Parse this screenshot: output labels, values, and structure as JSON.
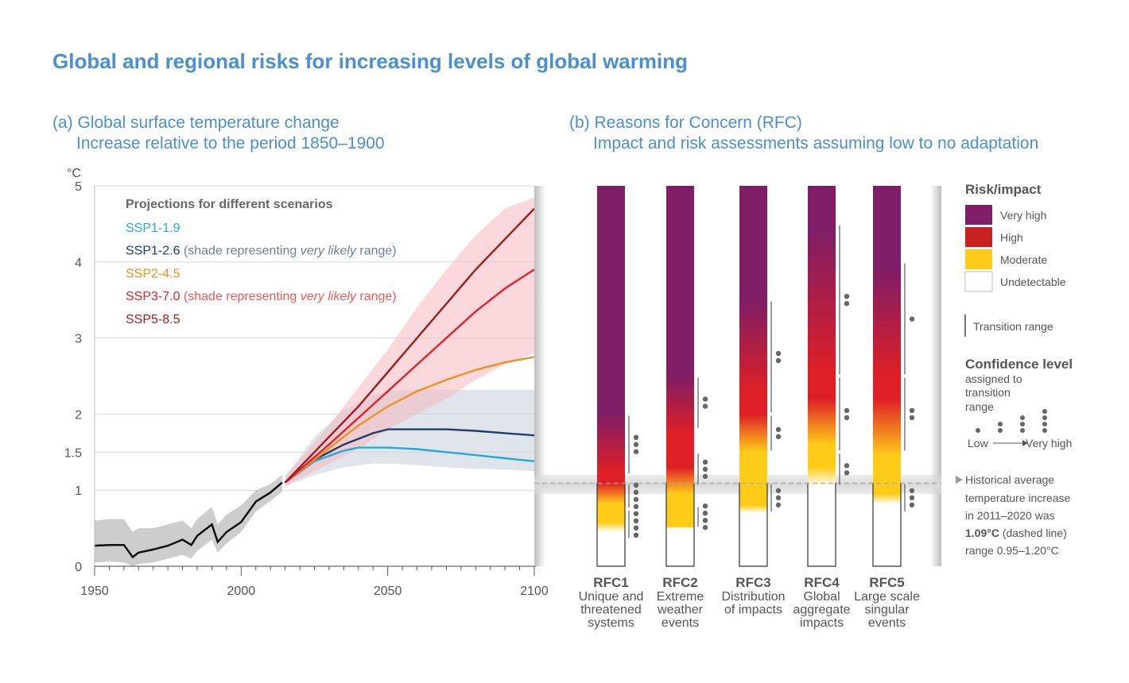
{
  "title": "Global and regional risks for increasing levels of global warming",
  "panel_a": {
    "title": "(a) Global surface temperature change",
    "subtitle": "Increase relative to the period 1850–1900"
  },
  "panel_b": {
    "title": "(b) Reasons for Concern (RFC)",
    "subtitle": "Impact and risk assessments assuming low to no adaptation"
  },
  "chart_data": [
    {
      "type": "line",
      "title": "(a) Global surface temperature change",
      "ylabel": "°C",
      "xlim": [
        1950,
        2100
      ],
      "ylim": [
        0,
        5
      ],
      "x_ticks": [
        "1950",
        "2000",
        "2050",
        "2100"
      ],
      "y_ticks": [
        "0",
        "1",
        "1.5",
        "2",
        "3",
        "4",
        "5"
      ],
      "legend_title": "Projections for different scenarios",
      "legend": [
        {
          "name": "SSP1-1.9",
          "color": "#27a9d8"
        },
        {
          "name": "SSP1-2.6",
          "color": "#1f3c6e",
          "note_pre": "(shade representing ",
          "note_em": "very likely",
          "note_post": " range)",
          "note_color": "#6a7fa3"
        },
        {
          "name": "SSP2-4.5",
          "color": "#ea9222"
        },
        {
          "name": "SSP3-7.0",
          "color": "#e1222b",
          "note_pre": "(shade representing ",
          "note_em": "very likely",
          "note_post": " range)",
          "note_color": "#ef5a5a"
        },
        {
          "name": "SSP5-8.5",
          "color": "#9e1b1e"
        }
      ],
      "observed": {
        "color": "#111111",
        "x": [
          1950,
          1955,
          1960,
          1963,
          1965,
          1970,
          1975,
          1980,
          1983,
          1985,
          1990,
          1992,
          1995,
          2000,
          2005,
          2010,
          2014
        ],
        "y": [
          0.27,
          0.28,
          0.28,
          0.12,
          0.18,
          0.22,
          0.27,
          0.35,
          0.28,
          0.4,
          0.55,
          0.32,
          0.45,
          0.58,
          0.85,
          0.97,
          1.1
        ],
        "band_low": [
          0.05,
          0.06,
          0.05,
          0.0,
          0.03,
          0.05,
          0.1,
          0.15,
          0.1,
          0.2,
          0.35,
          0.18,
          0.3,
          0.45,
          0.72,
          0.86,
          0.98
        ],
        "band_high": [
          0.6,
          0.62,
          0.62,
          0.45,
          0.5,
          0.5,
          0.55,
          0.6,
          0.5,
          0.62,
          0.78,
          0.55,
          0.68,
          0.8,
          1.0,
          1.08,
          1.2
        ]
      },
      "series": [
        {
          "name": "SSP1-1.9",
          "color": "#27a9d8",
          "x": [
            2015,
            2025,
            2035,
            2040,
            2050,
            2060,
            2070,
            2080,
            2090,
            2100
          ],
          "y": [
            1.1,
            1.38,
            1.52,
            1.56,
            1.56,
            1.54,
            1.5,
            1.46,
            1.42,
            1.38
          ]
        },
        {
          "name": "SSP1-2.6",
          "color": "#1f3c6e",
          "x": [
            2015,
            2025,
            2035,
            2045,
            2050,
            2060,
            2070,
            2080,
            2090,
            2100
          ],
          "y": [
            1.1,
            1.4,
            1.6,
            1.75,
            1.8,
            1.8,
            1.8,
            1.78,
            1.75,
            1.72
          ],
          "band_low": [
            1.05,
            1.2,
            1.3,
            1.35,
            1.35,
            1.33,
            1.3,
            1.28,
            1.27,
            1.25
          ],
          "band_high": [
            1.18,
            1.7,
            2.05,
            2.25,
            2.3,
            2.32,
            2.32,
            2.32,
            2.32,
            2.32
          ]
        },
        {
          "name": "SSP2-4.5",
          "color": "#ea9222",
          "x": [
            2015,
            2030,
            2040,
            2050,
            2060,
            2070,
            2080,
            2090,
            2100
          ],
          "y": [
            1.1,
            1.55,
            1.85,
            2.1,
            2.3,
            2.45,
            2.58,
            2.68,
            2.75
          ]
        },
        {
          "name": "SSP3-7.0",
          "color": "#e1222b",
          "x": [
            2015,
            2030,
            2040,
            2050,
            2060,
            2070,
            2080,
            2090,
            2100
          ],
          "y": [
            1.1,
            1.6,
            1.95,
            2.3,
            2.65,
            3.0,
            3.35,
            3.65,
            3.9
          ],
          "band_low": [
            1.05,
            1.35,
            1.55,
            1.8,
            2.0,
            2.2,
            2.45,
            2.65,
            2.8
          ],
          "band_high": [
            1.18,
            1.85,
            2.35,
            2.85,
            3.4,
            3.9,
            4.35,
            4.7,
            4.85
          ]
        },
        {
          "name": "SSP5-8.5",
          "color": "#9e1b1e",
          "x": [
            2015,
            2030,
            2040,
            2050,
            2060,
            2070,
            2080,
            2090,
            2100
          ],
          "y": [
            1.1,
            1.7,
            2.1,
            2.55,
            3.0,
            3.45,
            3.9,
            4.3,
            4.7
          ]
        }
      ]
    },
    {
      "type": "heatmap",
      "title": "(b) Reasons for Concern (RFC)",
      "ylim": [
        0,
        5
      ],
      "scale": {
        "undetectable": "#ffffff",
        "moderate": "#fecc18",
        "high": "#de1f26",
        "very_high": "#7f1d66"
      },
      "bars": [
        {
          "id": "RFC1",
          "name": "Unique and\nthreatened\nsystems",
          "undetectable_top": 0.45,
          "moderate_top": 1.1,
          "high_top": 2.0,
          "stops": [
            [
              0.0,
              "undetectable"
            ],
            [
              0.45,
              "undetectable"
            ],
            [
              0.58,
              "moderate"
            ],
            [
              0.82,
              "moderate"
            ],
            [
              1.1,
              "high"
            ],
            [
              1.25,
              "high"
            ],
            [
              2.0,
              "very_high"
            ],
            [
              5.0,
              "very_high"
            ]
          ],
          "transitions": [
            {
              "from": 0.35,
              "to": 0.75,
              "dots": 4
            },
            {
              "from": 0.75,
              "to": 1.1,
              "dots": 4
            },
            {
              "from": 1.2,
              "to": 2.0,
              "dots": 3
            }
          ]
        },
        {
          "id": "RFC2",
          "name": "Extreme\nweather\nevents",
          "undetectable_top": 0.5,
          "moderate_top": 1.0,
          "high_top": 2.5,
          "stops": [
            [
              0.0,
              "undetectable"
            ],
            [
              0.5,
              "undetectable"
            ],
            [
              0.52,
              "moderate"
            ],
            [
              0.95,
              "moderate"
            ],
            [
              1.3,
              "high"
            ],
            [
              1.75,
              "high"
            ],
            [
              2.5,
              "very_high"
            ],
            [
              5.0,
              "very_high"
            ]
          ],
          "transitions": [
            {
              "from": 0.5,
              "to": 0.8,
              "dots": 4
            },
            {
              "from": 1.05,
              "to": 1.5,
              "dots": 3
            },
            {
              "from": 1.8,
              "to": 2.5,
              "dots": 2
            }
          ]
        },
        {
          "id": "RFC3",
          "name": "Distribution\nof impacts",
          "undetectable_top": 0.75,
          "moderate_top": 1.6,
          "high_top": 3.5,
          "stops": [
            [
              0.0,
              "undetectable"
            ],
            [
              0.7,
              "undetectable"
            ],
            [
              0.8,
              "moderate"
            ],
            [
              1.5,
              "moderate"
            ],
            [
              2.0,
              "high"
            ],
            [
              2.3,
              "high"
            ],
            [
              3.5,
              "very_high"
            ],
            [
              5.0,
              "very_high"
            ]
          ],
          "transitions": [
            {
              "from": 0.7,
              "to": 1.1,
              "dots": 3
            },
            {
              "from": 1.5,
              "to": 2.0,
              "dots": 2
            },
            {
              "from": 2.0,
              "to": 3.5,
              "dots": 2
            }
          ]
        },
        {
          "id": "RFC4",
          "name": "Global\naggregate\nimpacts",
          "undetectable_top": 1.1,
          "moderate_top": 1.7,
          "high_top": 4.4,
          "stops": [
            [
              0.0,
              "undetectable"
            ],
            [
              1.05,
              "undetectable"
            ],
            [
              1.3,
              "moderate"
            ],
            [
              1.6,
              "moderate"
            ],
            [
              2.2,
              "high"
            ],
            [
              2.55,
              "high"
            ],
            [
              4.4,
              "very_high"
            ],
            [
              5.0,
              "very_high"
            ]
          ],
          "transitions": [
            {
              "from": 1.05,
              "to": 1.5,
              "dots": 2
            },
            {
              "from": 1.5,
              "to": 2.5,
              "dots": 2
            },
            {
              "from": 2.5,
              "to": 4.5,
              "dots": 2
            }
          ]
        },
        {
          "id": "RFC5",
          "name": "Large scale\nsingular\nevents",
          "undetectable_top": 0.85,
          "moderate_top": 1.6,
          "high_top": 3.9,
          "stops": [
            [
              0.0,
              "undetectable"
            ],
            [
              0.82,
              "undetectable"
            ],
            [
              0.95,
              "moderate"
            ],
            [
              1.45,
              "moderate"
            ],
            [
              2.2,
              "high"
            ],
            [
              2.5,
              "high"
            ],
            [
              3.9,
              "very_high"
            ],
            [
              5.0,
              "very_high"
            ]
          ],
          "transitions": [
            {
              "from": 0.7,
              "to": 1.1,
              "dots": 3
            },
            {
              "from": 1.5,
              "to": 2.5,
              "dots": 2
            },
            {
              "from": 2.5,
              "to": 4.0,
              "dots": 1
            }
          ]
        }
      ],
      "historical_band": [
        0.95,
        1.2
      ],
      "historical_value": 1.09
    }
  ],
  "legend_b": {
    "risk_title": "Risk/impact",
    "levels": [
      {
        "label": "Very high",
        "color": "#7f1d66"
      },
      {
        "label": "High",
        "color": "#c8201f"
      },
      {
        "label": "Moderate",
        "color": "#fecc18"
      },
      {
        "label": "Undetectable",
        "color": "#ffffff"
      }
    ],
    "transition_label": "Transition range",
    "confidence_title": "Confidence level",
    "confidence_sub1": "assigned to",
    "confidence_sub2": "transition",
    "confidence_sub3": "range",
    "low": "Low",
    "very_high": "Very high",
    "hist_line1": "Historical average",
    "hist_line2": "temperature increase",
    "hist_line3": "in 2011–2020 was",
    "hist_value": "1.09°C",
    "hist_line4_rest": " (dashed line)",
    "hist_line5": "range 0.95–1.20°C"
  }
}
